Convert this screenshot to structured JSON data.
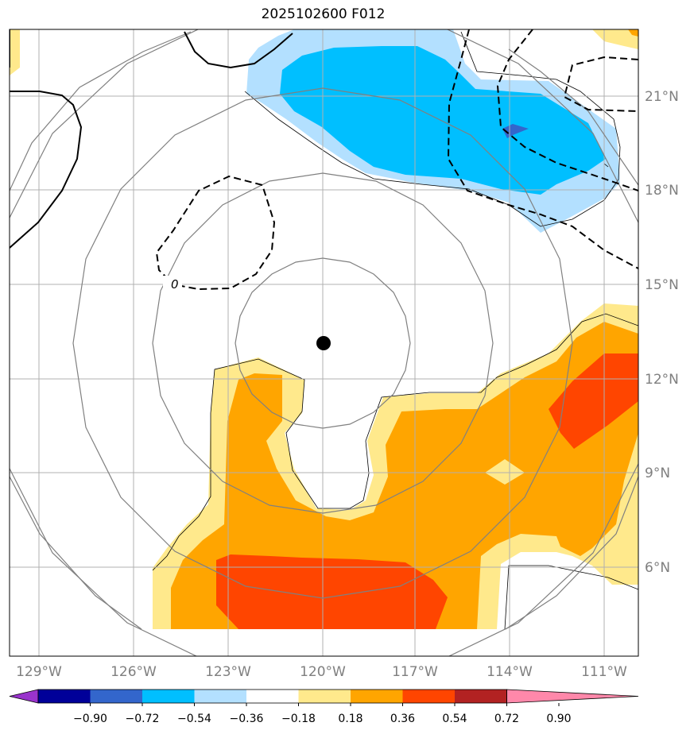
{
  "title": "2025102600 F012",
  "map": {
    "lon_ticks": [
      {
        "value": -129,
        "label": "129°W"
      },
      {
        "value": -126,
        "label": "126°W"
      },
      {
        "value": -123,
        "label": "123°W"
      },
      {
        "value": -120,
        "label": "120°W"
      },
      {
        "value": -117,
        "label": "117°W"
      },
      {
        "value": -114,
        "label": "114°W"
      },
      {
        "value": -111,
        "label": "111°W"
      }
    ],
    "lat_ticks": [
      {
        "value": 21,
        "label": "21°N"
      },
      {
        "value": 18,
        "label": "18°N"
      },
      {
        "value": 15,
        "label": "15°N"
      },
      {
        "value": 12,
        "label": "12°N"
      },
      {
        "value": 9,
        "label": "9°N"
      },
      {
        "value": 6,
        "label": "6°N"
      }
    ],
    "contour_label": "0",
    "center_marker": {
      "lon": -120,
      "lat": 13.1
    }
  },
  "colorbar": {
    "colors": [
      "#9933cc",
      "#000099",
      "#3366cc",
      "#00bfff",
      "#b3e0ff",
      "#ffffff",
      "#ffe98c",
      "#ffa500",
      "#ff4500",
      "#b22222",
      "#ff88aa"
    ],
    "labels": [
      "−0.90",
      "−0.72",
      "−0.54",
      "−0.36",
      "−0.18",
      "0.18",
      "0.36",
      "0.54",
      "0.72",
      "0.90"
    ]
  },
  "fill_colors": {
    "light_blue": "#b3e0ff",
    "blue": "#00bfff",
    "dark_blue": "#3366cc",
    "light_yellow": "#ffe98c",
    "orange": "#ffa500",
    "red_orange": "#ff4500"
  }
}
